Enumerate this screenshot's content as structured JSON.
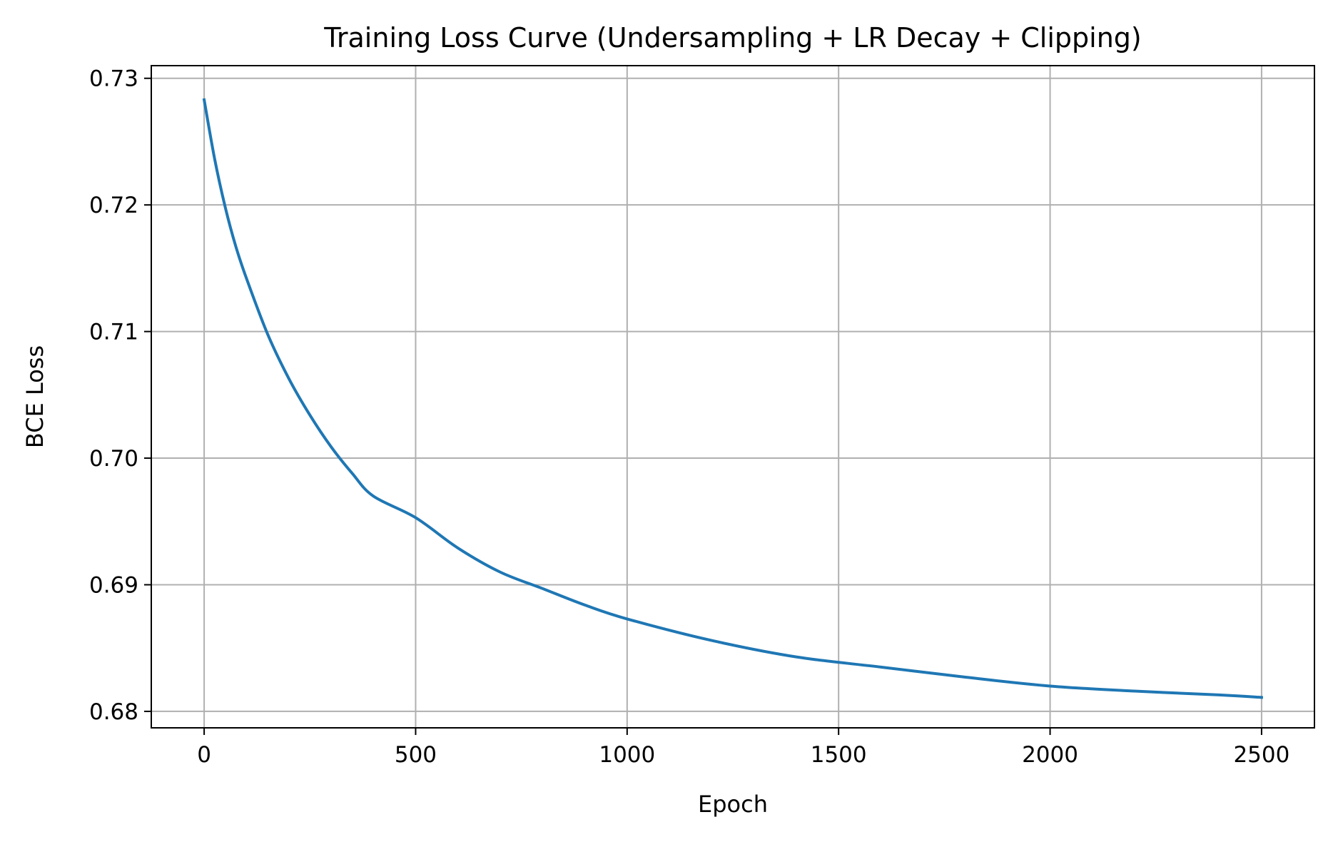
{
  "chart_data": {
    "type": "line",
    "title": "Training Loss Curve (Undersampling + LR Decay + Clipping)",
    "xlabel": "Epoch",
    "ylabel": "BCE Loss",
    "xlim": [
      -125,
      2625
    ],
    "ylim": [
      0.6787,
      0.731
    ],
    "xticks": [
      0,
      500,
      1000,
      1500,
      2000,
      2500
    ],
    "xtick_labels": [
      "0",
      "500",
      "1000",
      "1500",
      "2000",
      "2500"
    ],
    "yticks": [
      0.68,
      0.69,
      0.7,
      0.71,
      0.72,
      0.73
    ],
    "ytick_labels": [
      "0.68",
      "0.69",
      "0.70",
      "0.71",
      "0.72",
      "0.73"
    ],
    "grid": true,
    "series": [
      {
        "name": "",
        "color": "#1f77b4",
        "x": [
          0,
          25,
          50,
          75,
          100,
          150,
          200,
          250,
          300,
          350,
          400,
          500,
          600,
          700,
          800,
          900,
          1000,
          1200,
          1400,
          1600,
          1800,
          2000,
          2200,
          2400,
          2500
        ],
        "y": [
          0.7283,
          0.7236,
          0.7198,
          0.7167,
          0.7142,
          0.7098,
          0.7063,
          0.7034,
          0.7009,
          0.6988,
          0.697,
          0.6953,
          0.6929,
          0.691,
          0.6897,
          0.6884,
          0.6873,
          0.6856,
          0.6843,
          0.6835,
          0.6827,
          0.682,
          0.6816,
          0.6813,
          0.6811
        ]
      }
    ]
  }
}
